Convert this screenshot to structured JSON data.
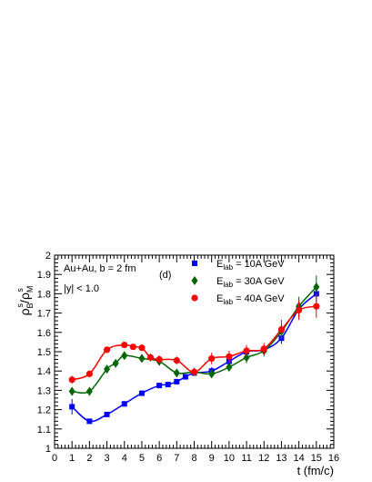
{
  "chart_data": {
    "type": "line",
    "panel_label": "(d)",
    "annotations": [
      "Au+Au, b = 2 fm",
      "|y| < 1.0"
    ],
    "xlabel": "t (fm/c)",
    "ylabel": {
      "base": "ρ",
      "sup_left": "s",
      "sub_left": "B",
      "slash": "/",
      "base2": "ρ",
      "sup_right": "s",
      "sub_right": "M"
    },
    "xlim": [
      0,
      16
    ],
    "ylim": [
      1,
      2
    ],
    "xticks": [
      0,
      1,
      2,
      3,
      4,
      5,
      6,
      7,
      8,
      9,
      10,
      11,
      12,
      13,
      14,
      15,
      16
    ],
    "yticks": [
      1,
      1.1,
      1.2,
      1.3,
      1.4,
      1.5,
      1.6,
      1.7,
      1.8,
      1.9,
      2
    ],
    "legend_position": "top-right",
    "series": [
      {
        "name": "10A GeV",
        "legend_prefix": "E",
        "legend_sub": "lab",
        "legend_text": " = 10A GeV",
        "color": "#0000ff",
        "marker": "square",
        "x": [
          1,
          2,
          3,
          4,
          5,
          6,
          6.5,
          7,
          7.5,
          8,
          9,
          10,
          11,
          12,
          13,
          14,
          15
        ],
        "y": [
          1.215,
          1.14,
          1.175,
          1.23,
          1.285,
          1.325,
          1.33,
          1.345,
          1.37,
          1.39,
          1.4,
          1.45,
          1.5,
          1.51,
          1.57,
          1.72,
          1.8
        ],
        "err": [
          0.04,
          0.01,
          0.01,
          0.01,
          0.01,
          0.01,
          0.01,
          0.01,
          0.01,
          0.01,
          0.02,
          0.02,
          0.02,
          0.02,
          0.03,
          0.05,
          0.05
        ]
      },
      {
        "name": "30A GeV",
        "legend_prefix": "E",
        "legend_sub": "lab",
        "legend_text": " = 30A GeV",
        "color": "#006600",
        "marker": "diamond",
        "x": [
          1,
          2,
          3,
          3.5,
          4,
          5,
          6,
          7,
          8,
          9,
          10,
          11,
          12,
          13,
          14,
          15
        ],
        "y": [
          1.295,
          1.295,
          1.41,
          1.44,
          1.48,
          1.465,
          1.45,
          1.39,
          1.395,
          1.385,
          1.42,
          1.47,
          1.505,
          1.605,
          1.735,
          1.835
        ],
        "err": [
          0.02,
          0.01,
          0.02,
          0.02,
          0.02,
          0.02,
          0.02,
          0.02,
          0.02,
          0.02,
          0.02,
          0.03,
          0.03,
          0.04,
          0.05,
          0.06
        ]
      },
      {
        "name": "40A GeV",
        "legend_prefix": "E",
        "legend_sub": "lab",
        "legend_text": " = 40A GeV",
        "color": "#ff0000",
        "marker": "circle",
        "x": [
          1,
          2,
          3,
          4,
          4.5,
          5,
          5.5,
          6,
          7,
          8,
          9,
          10,
          11,
          12,
          13,
          14,
          15
        ],
        "y": [
          1.355,
          1.385,
          1.51,
          1.535,
          1.525,
          1.52,
          1.47,
          1.46,
          1.455,
          1.395,
          1.465,
          1.475,
          1.505,
          1.515,
          1.615,
          1.715,
          1.735
        ],
        "err": [
          0.02,
          0.01,
          0.01,
          0.01,
          0.01,
          0.01,
          0.02,
          0.02,
          0.02,
          0.02,
          0.03,
          0.03,
          0.03,
          0.03,
          0.05,
          0.05,
          0.06
        ]
      }
    ]
  }
}
